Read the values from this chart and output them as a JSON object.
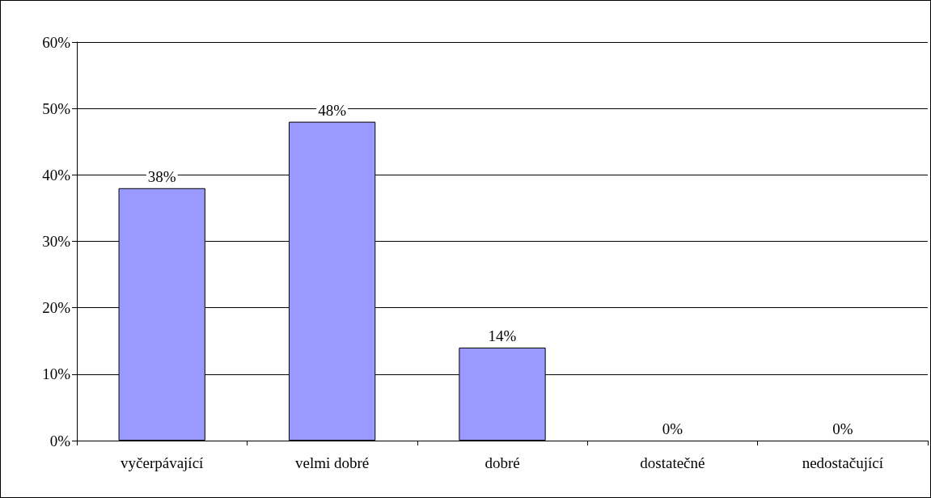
{
  "chart_data": {
    "type": "bar",
    "categories": [
      "vyčerpávající",
      "velmi dobré",
      "dobré",
      "dostatečné",
      "nedostačující"
    ],
    "values": [
      38,
      48,
      14,
      0,
      0
    ],
    "value_labels": [
      "38%",
      "48%",
      "14%",
      "0%",
      "0%"
    ],
    "color": "#9999ff",
    "ylim": [
      0,
      60
    ],
    "yticks": [
      {
        "value": 0,
        "label": "0%"
      },
      {
        "value": 10,
        "label": "10%"
      },
      {
        "value": 20,
        "label": "20%"
      },
      {
        "value": 30,
        "label": "30%"
      },
      {
        "value": 40,
        "label": "40%"
      },
      {
        "value": 50,
        "label": "50%"
      },
      {
        "value": 60,
        "label": "60%"
      }
    ],
    "grid": true
  }
}
